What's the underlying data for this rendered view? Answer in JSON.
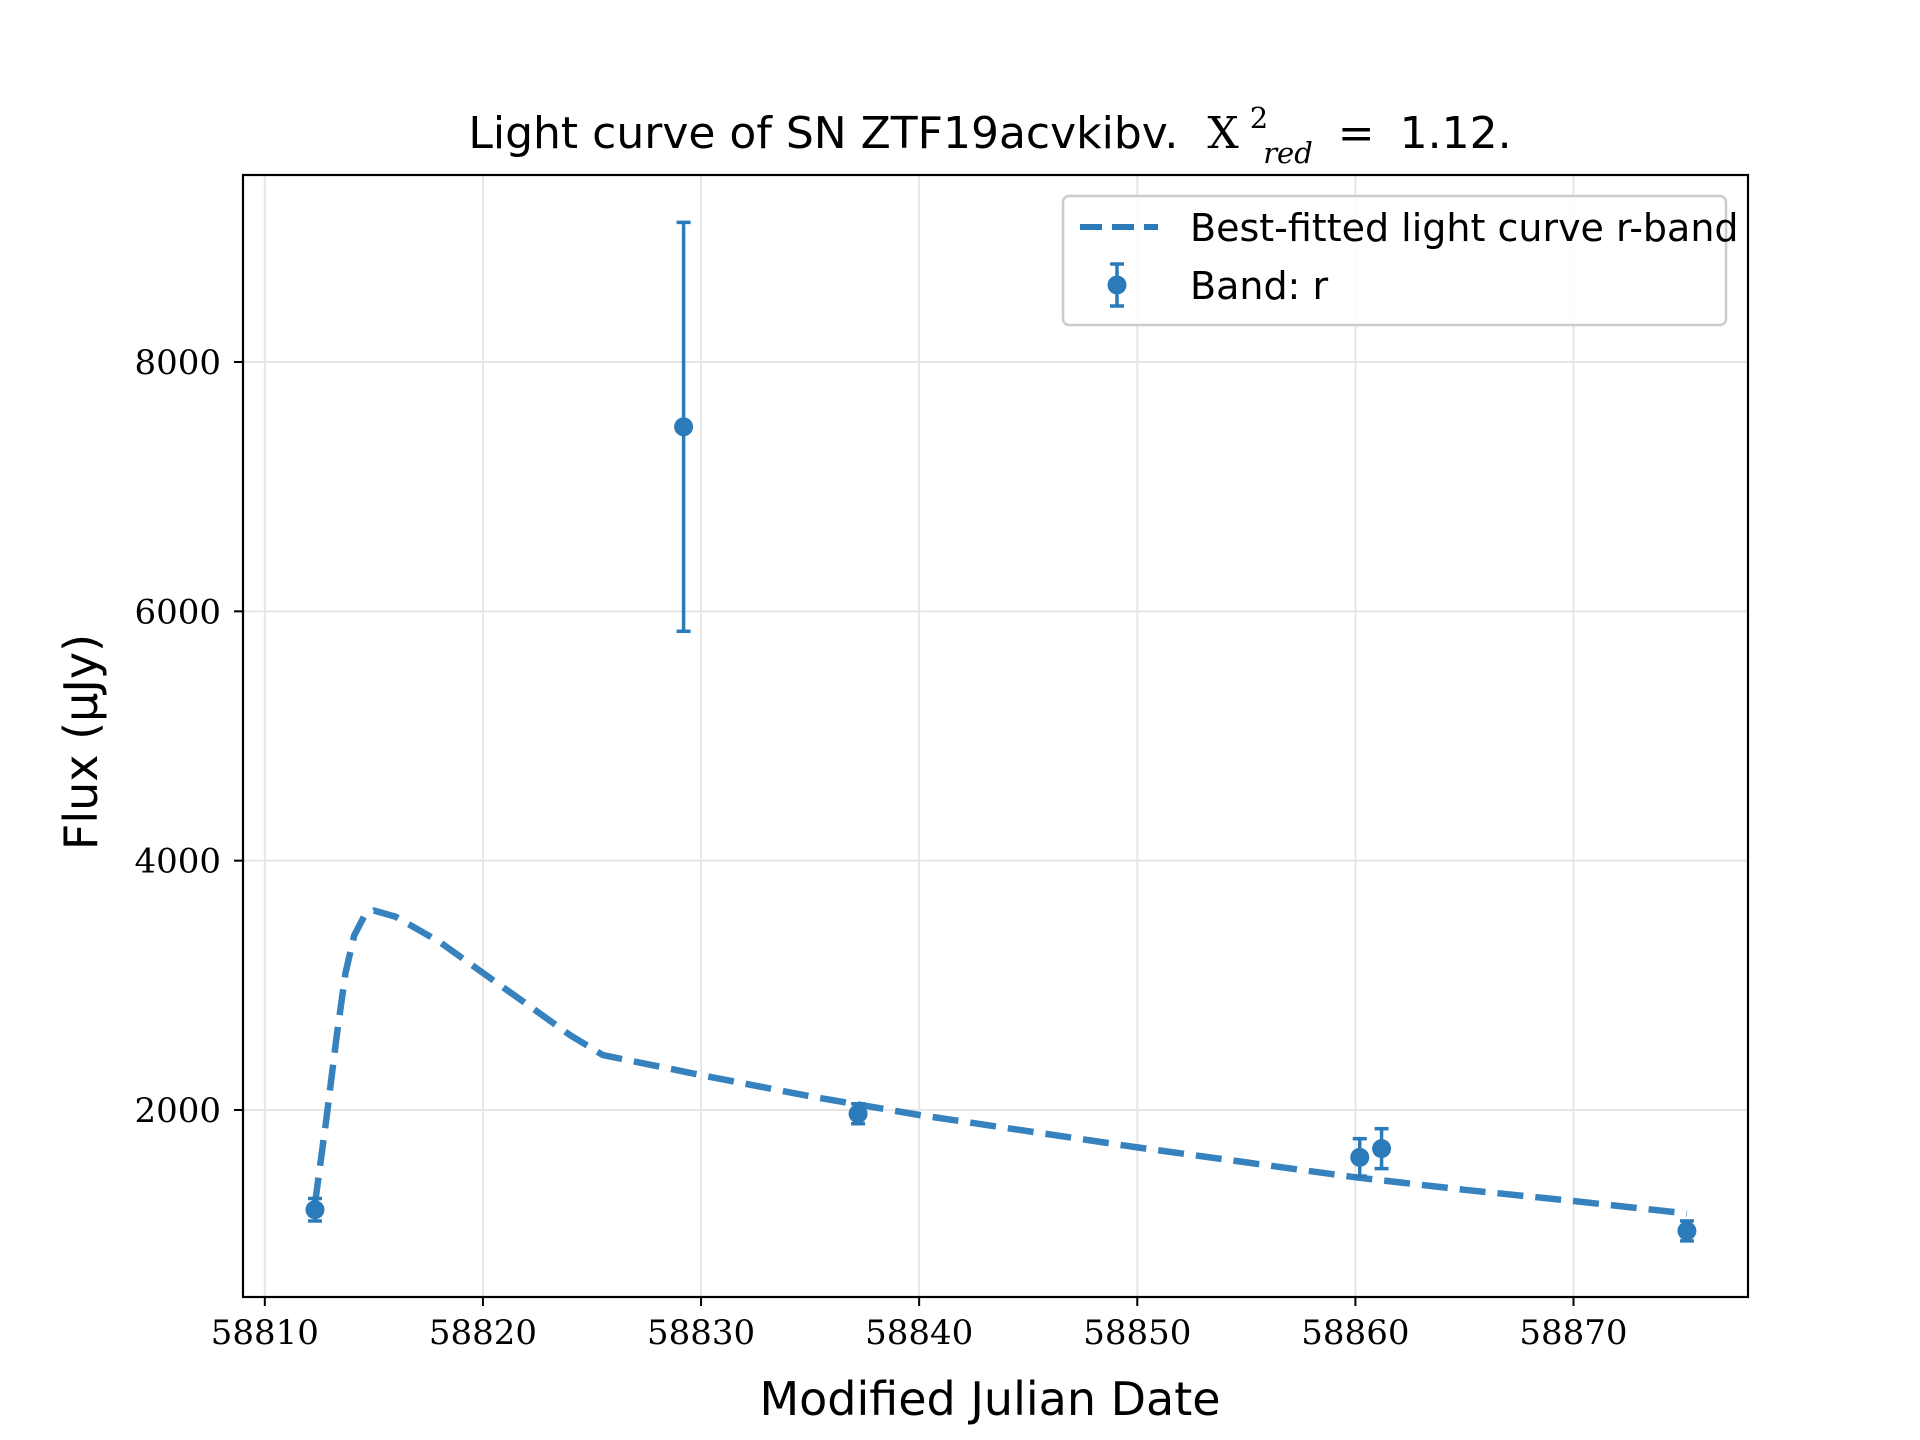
{
  "chart_data": {
    "type": "scatter",
    "title": "Light curve of SN ZTF19acvkibv.",
    "title_stat": {
      "symbol": "X",
      "superscript": "2",
      "subscript": "red",
      "relation": "=",
      "value": "1.12."
    },
    "xlabel": "Modified Julian Date",
    "ylabel": "Flux (μJy)",
    "xlim": [
      58809,
      58878
    ],
    "ylim": [
      500,
      9500
    ],
    "xticks": [
      58810,
      58820,
      58830,
      58840,
      58850,
      58860,
      58870
    ],
    "yticks": [
      2000,
      4000,
      6000,
      8000
    ],
    "grid": true,
    "legend_position": "top-right",
    "color": "#2b7bba",
    "series": [
      {
        "name": "Best-fitted light curve r-band",
        "style": "dashed-line",
        "x": [
          58812.3,
          58812.8,
          58813.3,
          58813.7,
          58814.1,
          58814.6,
          58815.0,
          58816.0,
          58818.0,
          58820.0,
          58822.0,
          58824.0,
          58825.5,
          58830,
          58835,
          58840,
          58845,
          58850,
          58855,
          58860,
          58865,
          58870,
          58875.2
        ],
        "values": [
          1250,
          1900,
          2600,
          3100,
          3400,
          3570,
          3600,
          3550,
          3350,
          3100,
          2850,
          2600,
          2440,
          2280,
          2110,
          1960,
          1830,
          1700,
          1580,
          1460,
          1360,
          1270,
          1170
        ]
      },
      {
        "name": "Band: r",
        "style": "errorbar-points",
        "x": [
          58812.3,
          58829.2,
          58837.2,
          58860.2,
          58861.2,
          58875.2
        ],
        "values": [
          1200,
          7480,
          1970,
          1620,
          1690,
          1030
        ],
        "errors": [
          90,
          1640,
          80,
          150,
          160,
          80
        ]
      }
    ]
  }
}
